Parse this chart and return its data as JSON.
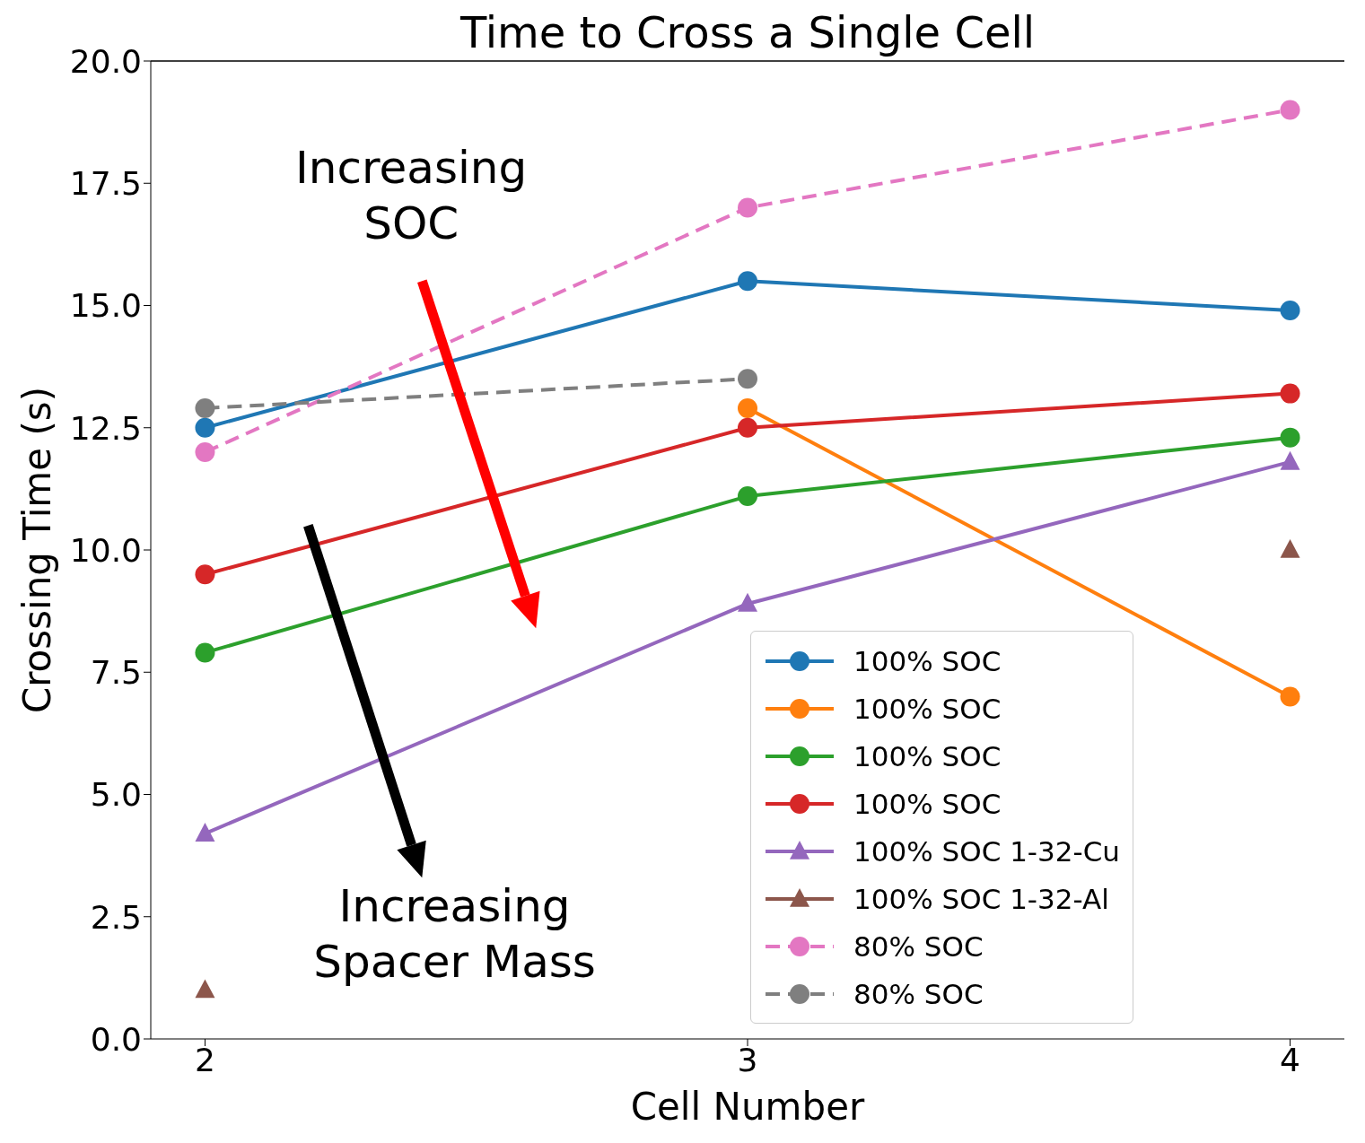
{
  "chart_data": {
    "type": "line",
    "title": "Time to Cross a Single Cell",
    "xlabel": "Cell Number",
    "ylabel": "Crossing Time (s)",
    "x": [
      2,
      3,
      4
    ],
    "xlim": [
      1.9,
      4.1
    ],
    "xticks": [
      2,
      3,
      4
    ],
    "ylim": [
      0,
      20
    ],
    "yticks": [
      {
        "value": 0,
        "label": "0.0"
      },
      {
        "value": 2.5,
        "label": "2.5"
      },
      {
        "value": 5,
        "label": "5.0"
      },
      {
        "value": 7.5,
        "label": "7.5"
      },
      {
        "value": 10,
        "label": "10.0"
      },
      {
        "value": 12.5,
        "label": "12.5"
      },
      {
        "value": 15,
        "label": "15.0"
      },
      {
        "value": 17.5,
        "label": "17.5"
      },
      {
        "value": 20,
        "label": "20.0"
      }
    ],
    "legend": "bottom right",
    "annotations": [
      "Increasing\nSOC",
      "Increasing\nSpacer Mass"
    ],
    "series": [
      {
        "name": "100% SOC",
        "color": "#1f77b4",
        "marker": "circle",
        "line_style": "solid",
        "values": [
          12.5,
          15.5,
          14.9
        ]
      },
      {
        "name": "100% SOC",
        "color": "#ff7f0e",
        "marker": "circle",
        "line_style": "solid",
        "values": [
          null,
          12.9,
          7.0
        ]
      },
      {
        "name": "100% SOC",
        "color": "#2ca02c",
        "marker": "circle",
        "line_style": "solid",
        "values": [
          7.9,
          11.1,
          12.3
        ]
      },
      {
        "name": "100% SOC",
        "color": "#d62728",
        "marker": "circle",
        "line_style": "solid",
        "values": [
          9.5,
          12.5,
          13.2
        ]
      },
      {
        "name": "100% SOC 1-32-Cu",
        "color": "#9467bd",
        "marker": "triangle",
        "line_style": "solid",
        "values": [
          4.2,
          8.9,
          11.8
        ]
      },
      {
        "name": "100% SOC 1-32-Al",
        "color": "#8c564b",
        "marker": "triangle",
        "line_style": "solid",
        "values": [
          1.0,
          null,
          10.0
        ]
      },
      {
        "name": "80% SOC",
        "color": "#e377c2",
        "marker": "circle",
        "line_style": "dashed",
        "values": [
          12.0,
          17.0,
          19.0
        ]
      },
      {
        "name": "80% SOC",
        "color": "#7f7f7f",
        "marker": "circle",
        "line_style": "dashed",
        "values": [
          12.9,
          13.5,
          null
        ]
      }
    ]
  }
}
